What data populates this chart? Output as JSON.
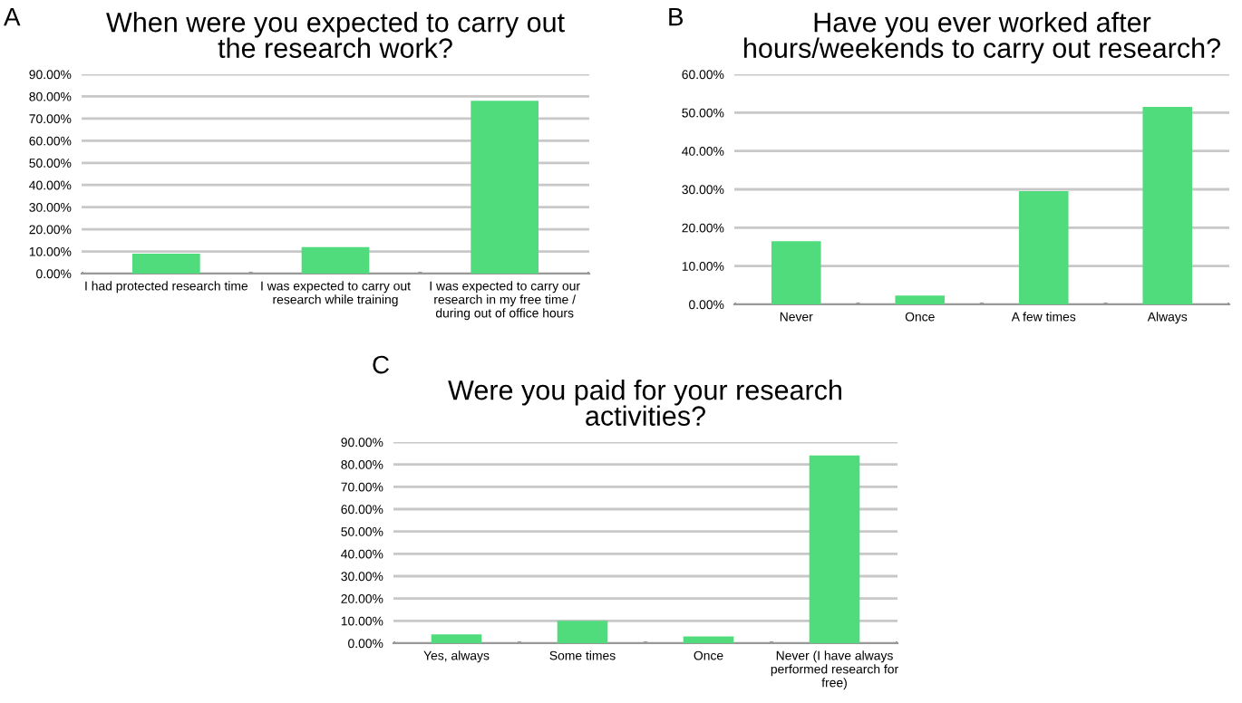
{
  "chart_data": [
    {
      "type": "bar",
      "title": "When were you expected to carry out the research work?",
      "annotations": [
        "A"
      ],
      "categories": [
        "I had protected research time",
        "I was expected to carry out research while training",
        "I was expected to carry our research in my free time / during out of office hours"
      ],
      "values": [
        9,
        12,
        78
      ],
      "color": "#50dc7c",
      "ylim": [
        0,
        90
      ],
      "yticks": [
        {
          "value": 0,
          "label": "0.00%"
        },
        {
          "value": 10,
          "label": "10.00%"
        },
        {
          "value": 20,
          "label": "20.00%"
        },
        {
          "value": 30,
          "label": "30.00%"
        },
        {
          "value": 40,
          "label": "40.00%"
        },
        {
          "value": 50,
          "label": "50.00%"
        },
        {
          "value": 60,
          "label": "60.00%"
        },
        {
          "value": 70,
          "label": "70.00%"
        },
        {
          "value": 80,
          "label": "80.00%"
        },
        {
          "value": 90,
          "label": "90.00%"
        }
      ],
      "grid": "y"
    },
    {
      "type": "bar",
      "title": "Have you ever worked after hours/weekends to carry out research?",
      "annotations": [
        "B"
      ],
      "categories": [
        "Never",
        "Once",
        "A few times",
        "Always"
      ],
      "values": [
        16.5,
        2.3,
        29.5,
        51.5
      ],
      "color": "#50dc7c",
      "ylim": [
        0,
        60
      ],
      "yticks": [
        {
          "value": 0,
          "label": "0.00%"
        },
        {
          "value": 10,
          "label": "10.00%"
        },
        {
          "value": 20,
          "label": "20.00%"
        },
        {
          "value": 30,
          "label": "30.00%"
        },
        {
          "value": 40,
          "label": "40.00%"
        },
        {
          "value": 50,
          "label": "50.00%"
        },
        {
          "value": 60,
          "label": "60.00%"
        }
      ],
      "grid": "y"
    },
    {
      "type": "bar",
      "title": "Were you paid for your research activities?",
      "annotations": [
        "C"
      ],
      "categories": [
        "Yes, always",
        "Some times",
        "Once",
        "Never (I have always performed research for free)"
      ],
      "values": [
        4,
        10,
        3,
        84
      ],
      "color": "#50dc7c",
      "ylim": [
        0,
        90
      ],
      "yticks": [
        {
          "value": 0,
          "label": "0.00%"
        },
        {
          "value": 10,
          "label": "10.00%"
        },
        {
          "value": 20,
          "label": "20.00%"
        },
        {
          "value": 30,
          "label": "30.00%"
        },
        {
          "value": 40,
          "label": "40.00%"
        },
        {
          "value": 50,
          "label": "50.00%"
        },
        {
          "value": 60,
          "label": "60.00%"
        },
        {
          "value": 70,
          "label": "70.00%"
        },
        {
          "value": 80,
          "label": "80.00%"
        },
        {
          "value": 90,
          "label": "90.00%"
        }
      ],
      "grid": "y"
    }
  ]
}
